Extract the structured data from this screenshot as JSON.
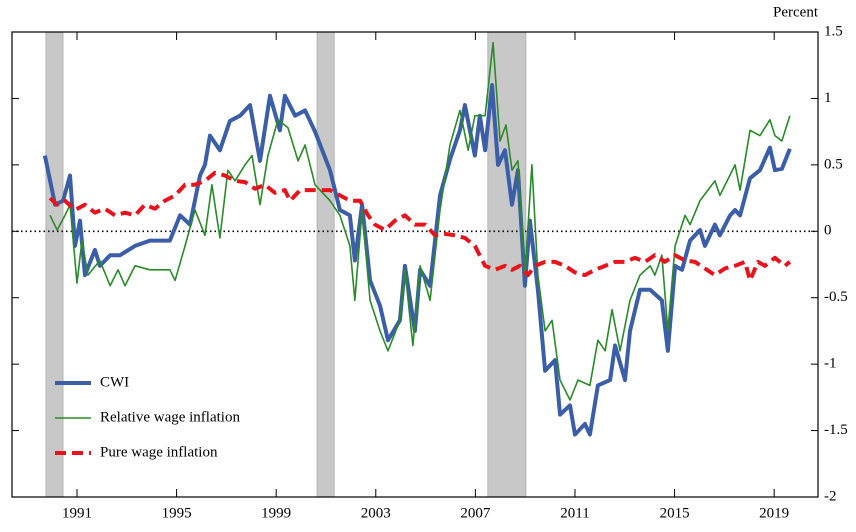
{
  "chart_data": {
    "type": "line",
    "y_axis_label": "Percent",
    "xlim": [
      1988.39,
      2020.76
    ],
    "xticks": [
      1991,
      1995,
      1999,
      2003,
      2007,
      2011,
      2015,
      2019
    ],
    "ylim": [
      -2,
      1.5
    ],
    "yticks": [
      1.5,
      1,
      0.5,
      0,
      -0.5,
      -1,
      -1.5,
      -2
    ],
    "reference_line": 0,
    "recessions": [
      [
        1989.75,
        1990.44
      ],
      [
        2000.64,
        2001.33
      ],
      [
        2007.5,
        2009.03
      ]
    ],
    "legend": "lower left",
    "series": [
      {
        "name": "CWI",
        "color": "#3b5ea8",
        "style": "solid",
        "width": 4,
        "x": [
          1989.71,
          1990.12,
          1990.44,
          1990.72,
          1990.92,
          1991.12,
          1991.32,
          1991.72,
          1991.92,
          1992.33,
          1992.73,
          1993.33,
          1993.93,
          1994.73,
          1995.14,
          1995.54,
          1995.94,
          1996.14,
          1996.34,
          1996.74,
          1997.14,
          1997.55,
          1997.95,
          1998.35,
          1998.75,
          1999.15,
          1999.35,
          1999.76,
          2000.16,
          2000.56,
          2001.16,
          2001.56,
          2001.96,
          2002.16,
          2002.45,
          2002.77,
          2003.17,
          2003.49,
          2003.97,
          2004.17,
          2004.57,
          2004.78,
          2005.18,
          2005.58,
          2005.98,
          2006.38,
          2006.58,
          2006.98,
          2007.18,
          2007.39,
          2007.67,
          2007.91,
          2008.19,
          2008.47,
          2008.71,
          2008.99,
          2009.19,
          2009.51,
          2009.8,
          2010.2,
          2010.4,
          2010.8,
          2011.0,
          2011.4,
          2011.6,
          2011.92,
          2012.41,
          2012.61,
          2013.01,
          2013.21,
          2013.61,
          2014.02,
          2014.49,
          2014.73,
          2015.02,
          2015.3,
          2015.62,
          2016.02,
          2016.22,
          2016.62,
          2016.82,
          2017.23,
          2017.43,
          2017.63,
          2018.03,
          2018.43,
          2018.83,
          2019.03,
          2019.31,
          2019.63
        ],
        "values": [
          0.57,
          0.2,
          0.23,
          0.42,
          -0.11,
          0.08,
          -0.33,
          -0.14,
          -0.26,
          -0.18,
          -0.18,
          -0.11,
          -0.07,
          -0.07,
          0.12,
          0.05,
          0.42,
          0.5,
          0.72,
          0.61,
          0.83,
          0.87,
          0.95,
          0.53,
          1.02,
          0.76,
          1.02,
          0.87,
          0.91,
          0.75,
          0.46,
          0.16,
          0.12,
          -0.22,
          0.2,
          -0.37,
          -0.56,
          -0.82,
          -0.67,
          -0.26,
          -0.75,
          -0.29,
          -0.41,
          0.27,
          0.54,
          0.76,
          0.95,
          0.57,
          0.87,
          0.61,
          1.1,
          0.5,
          0.61,
          0.2,
          0.46,
          -0.41,
          0.08,
          -0.44,
          -1.05,
          -0.97,
          -1.38,
          -1.31,
          -1.53,
          -1.45,
          -1.53,
          -1.16,
          -1.12,
          -0.86,
          -1.12,
          -0.75,
          -0.44,
          -0.44,
          -0.52,
          -0.9,
          -0.26,
          -0.29,
          -0.07,
          0.01,
          -0.11,
          0.05,
          -0.03,
          0.12,
          0.16,
          0.12,
          0.4,
          0.46,
          0.63,
          0.46,
          0.47,
          0.62
        ]
      },
      {
        "name": "Relative wage inflation",
        "color": "#2a8a2a",
        "style": "solid",
        "width": 1.6,
        "x": [
          1989.92,
          1990.2,
          1990.52,
          1990.72,
          1991.0,
          1991.2,
          1991.44,
          1991.92,
          1992.33,
          1992.65,
          1992.93,
          1993.33,
          1993.93,
          1994.73,
          1994.94,
          1995.34,
          1995.74,
          1996.14,
          1996.42,
          1996.74,
          1997.06,
          1997.35,
          1997.75,
          1998.03,
          1998.35,
          1998.67,
          1999.07,
          1999.47,
          1999.88,
          2000.16,
          2000.56,
          2001.16,
          2001.56,
          2001.96,
          2002.16,
          2002.45,
          2002.77,
          2003.17,
          2003.49,
          2003.97,
          2004.17,
          2004.49,
          2004.78,
          2005.18,
          2005.58,
          2005.98,
          2006.38,
          2006.71,
          2006.98,
          2007.39,
          2007.71,
          2007.99,
          2008.23,
          2008.47,
          2008.71,
          2008.99,
          2009.27,
          2009.51,
          2009.8,
          2010.08,
          2010.4,
          2010.8,
          2011.12,
          2011.6,
          2011.92,
          2012.21,
          2012.49,
          2012.81,
          2013.21,
          2013.61,
          2014.02,
          2014.21,
          2014.49,
          2014.73,
          2015.02,
          2015.42,
          2015.62,
          2016.02,
          2016.62,
          2016.82,
          2017.43,
          2017.63,
          2018.03,
          2018.43,
          2018.83,
          2019.03,
          2019.31,
          2019.63
        ],
        "values": [
          0.12,
          0.01,
          0.12,
          0.2,
          -0.39,
          -0.07,
          -0.33,
          -0.22,
          -0.41,
          -0.29,
          -0.41,
          -0.26,
          -0.29,
          -0.29,
          -0.37,
          -0.11,
          0.16,
          -0.03,
          0.35,
          -0.05,
          0.46,
          0.38,
          0.5,
          0.57,
          0.2,
          0.57,
          0.84,
          0.78,
          0.53,
          0.65,
          0.35,
          0.23,
          0.12,
          -0.11,
          -0.52,
          0.16,
          -0.52,
          -0.75,
          -0.9,
          -0.67,
          -0.29,
          -0.86,
          -0.26,
          -0.52,
          0.16,
          0.65,
          0.91,
          0.61,
          0.87,
          0.87,
          1.42,
          0.68,
          0.8,
          0.46,
          0.53,
          -0.33,
          0.5,
          -0.33,
          -0.75,
          -0.67,
          -1.12,
          -1.27,
          -1.12,
          -1.16,
          -0.82,
          -0.9,
          -0.59,
          -0.9,
          -0.52,
          -0.33,
          -0.26,
          -0.33,
          -0.18,
          -0.75,
          -0.11,
          0.12,
          0.05,
          0.23,
          0.38,
          0.27,
          0.5,
          0.31,
          0.76,
          0.72,
          0.84,
          0.72,
          0.68,
          0.87
        ]
      },
      {
        "name": "Pure wage inflation",
        "color": "#e8141c",
        "style": "dashed",
        "width": 4,
        "x": [
          1989.92,
          1990.2,
          1990.52,
          1990.92,
          1991.32,
          1991.72,
          1992.12,
          1992.53,
          1992.93,
          1993.33,
          1993.73,
          1994.13,
          1994.53,
          1994.94,
          1995.34,
          1995.74,
          1996.14,
          1996.54,
          1996.94,
          1997.35,
          1997.75,
          1998.15,
          1998.55,
          1998.95,
          1999.35,
          1999.56,
          1999.96,
          2000.56,
          2001.16,
          2001.56,
          2001.96,
          2002.37,
          2002.69,
          2002.97,
          2003.37,
          2003.77,
          2004.17,
          2004.57,
          2004.98,
          2005.38,
          2005.78,
          2006.18,
          2006.58,
          2006.98,
          2007.39,
          2007.79,
          2008.19,
          2008.47,
          2008.79,
          2009.11,
          2009.39,
          2009.8,
          2010.2,
          2010.6,
          2011.0,
          2011.4,
          2011.8,
          2012.21,
          2012.61,
          2013.01,
          2013.41,
          2013.81,
          2014.21,
          2014.61,
          2015.02,
          2015.42,
          2015.82,
          2016.22,
          2016.62,
          2017.02,
          2017.43,
          2017.83,
          2018.03,
          2018.35,
          2018.63,
          2019.03,
          2019.43,
          2019.63
        ],
        "values": [
          0.25,
          0.2,
          0.23,
          0.16,
          0.2,
          0.14,
          0.17,
          0.12,
          0.14,
          0.12,
          0.2,
          0.17,
          0.23,
          0.27,
          0.35,
          0.35,
          0.38,
          0.44,
          0.42,
          0.38,
          0.37,
          0.32,
          0.35,
          0.29,
          0.31,
          0.23,
          0.31,
          0.31,
          0.31,
          0.27,
          0.23,
          0.23,
          0.12,
          0.05,
          0.01,
          0.08,
          0.12,
          0.05,
          0.05,
          -0.03,
          -0.02,
          -0.03,
          -0.05,
          -0.11,
          -0.26,
          -0.29,
          -0.26,
          -0.29,
          -0.26,
          -0.33,
          -0.26,
          -0.23,
          -0.23,
          -0.26,
          -0.31,
          -0.33,
          -0.29,
          -0.26,
          -0.23,
          -0.23,
          -0.2,
          -0.23,
          -0.18,
          -0.23,
          -0.18,
          -0.22,
          -0.23,
          -0.28,
          -0.33,
          -0.28,
          -0.26,
          -0.23,
          -0.37,
          -0.23,
          -0.26,
          -0.2,
          -0.26,
          -0.23
        ]
      }
    ]
  }
}
